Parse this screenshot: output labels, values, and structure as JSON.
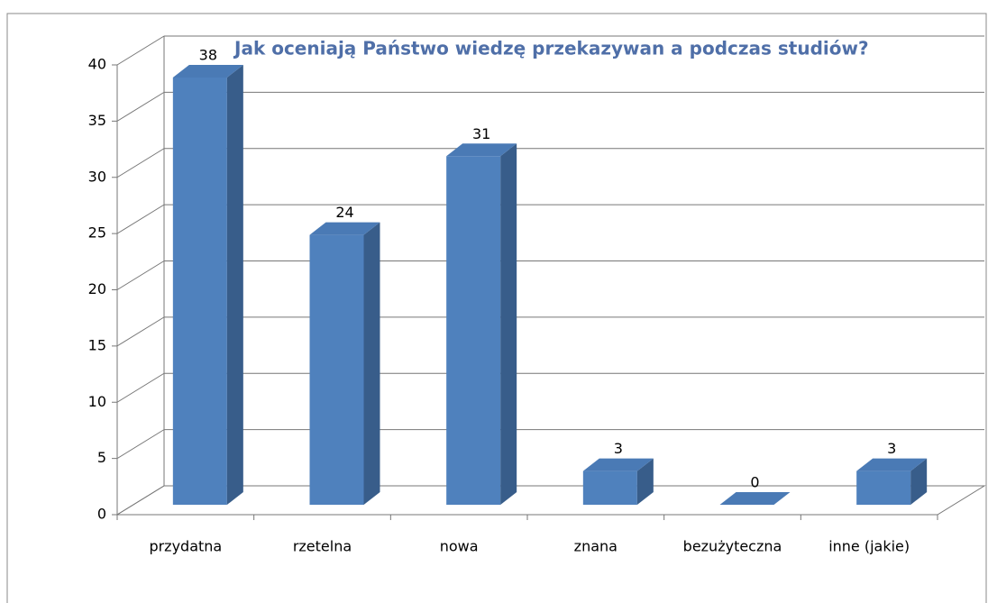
{
  "chart_data": {
    "type": "bar3d",
    "title": "Jak oceniają Państwo wiedzę przekazywan a podczas studiów?",
    "categories": [
      "przydatna",
      "rzetelna",
      "nowa",
      "znana",
      "bezużyteczna",
      "inne (jakie)"
    ],
    "values": [
      38,
      24,
      31,
      3,
      0,
      3
    ],
    "color": "#4f81bd",
    "ylim": [
      0,
      40
    ],
    "yticks": [
      0,
      5,
      10,
      15,
      20,
      25,
      30,
      35,
      40
    ],
    "grid": true
  }
}
